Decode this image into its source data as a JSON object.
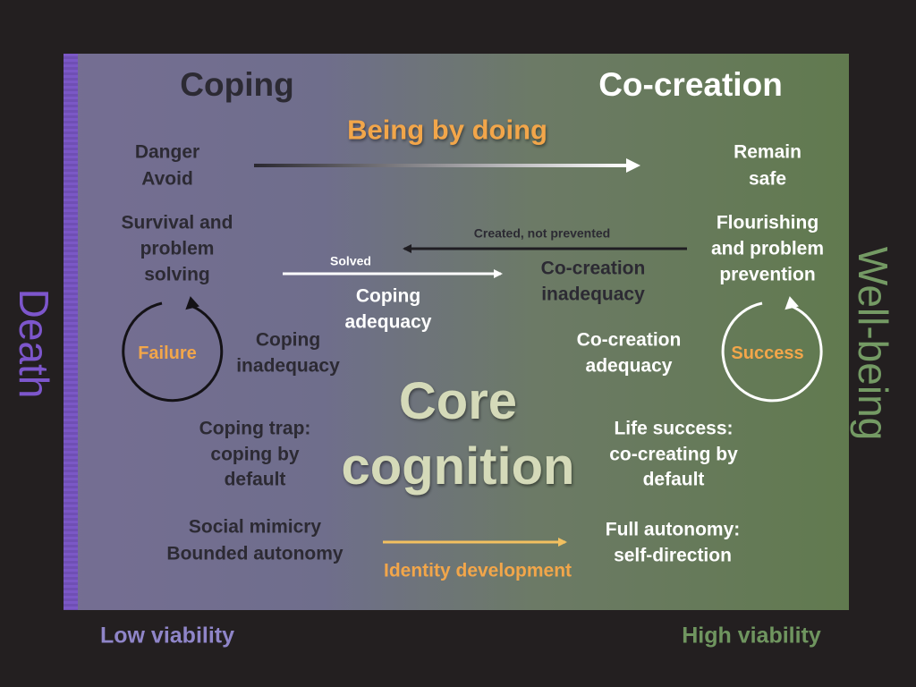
{
  "headings": {
    "coping": "Coping",
    "co_creation": "Co-creation",
    "being_by_doing": "Being by doing",
    "core_line1": "Core",
    "core_line2": "cognition"
  },
  "side_labels": {
    "left": "Death",
    "right": "Well-being"
  },
  "axis_labels": {
    "low": "Low viability",
    "high": "High viability"
  },
  "left_column": {
    "danger": "Danger",
    "avoid": "Avoid",
    "survival_1": "Survival and",
    "survival_2": "problem",
    "survival_3": "solving",
    "failure": "Failure",
    "coping_inadequacy_1": "Coping",
    "coping_inadequacy_2": "inadequacy",
    "trap_1": "Coping trap:",
    "trap_2": "coping by",
    "trap_3": "default",
    "mimicry": "Social mimicry",
    "bounded": "Bounded autonomy"
  },
  "middle": {
    "solved": "Solved",
    "coping_adequacy_1": "Coping",
    "coping_adequacy_2": "adequacy",
    "created_not_prevented": "Created, not prevented",
    "cocreation_inadequacy_1": "Co-creation",
    "cocreation_inadequacy_2": "inadequacy",
    "identity_development": "Identity development"
  },
  "right_column": {
    "remain": "Remain",
    "safe": "safe",
    "flourishing_1": "Flourishing",
    "flourishing_2": "and problem",
    "flourishing_3": "prevention",
    "success": "Success",
    "cocreation_adequacy_1": "Co-creation",
    "cocreation_adequacy_2": "adequacy",
    "life_success_1": "Life success:",
    "life_success_2": "co-creating by",
    "life_success_3": "default",
    "full_autonomy_1": "Full autonomy:",
    "full_autonomy_2": "self-direction"
  },
  "colors": {
    "panel_left": "#756e93",
    "panel_right": "#617a4f",
    "orange": "#f2a64a",
    "death": "#7d56cc",
    "well_being": "#749a64"
  }
}
